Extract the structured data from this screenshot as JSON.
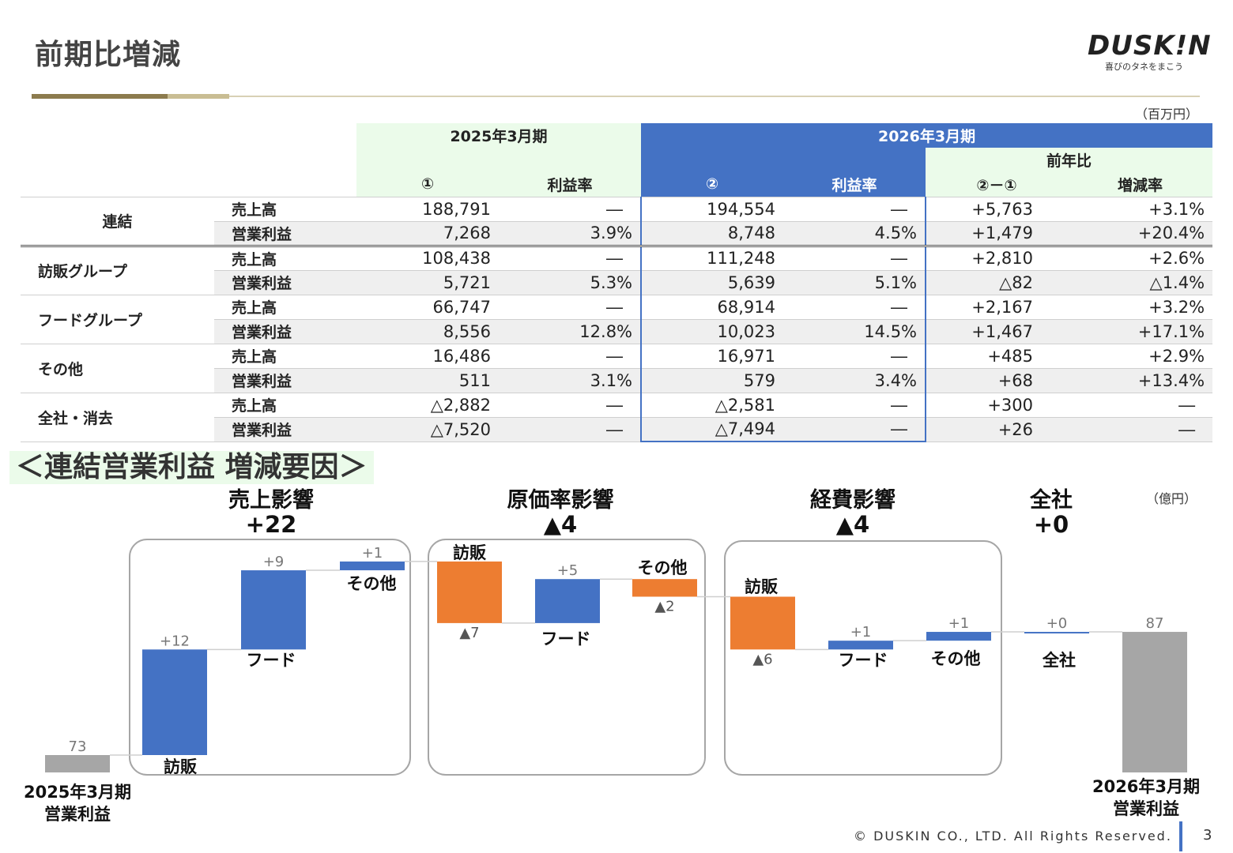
{
  "header": {
    "title": "前期比増減",
    "logo_text": "DUSK!N",
    "logo_tagline": "喜びのタネをまこう",
    "unit": "（百万円）"
  },
  "table": {
    "period_prev": "2025年3月期",
    "period_curr": "2026年3月期",
    "yoy_label": "前年比",
    "col_prev": "①",
    "col_margin": "利益率",
    "col_curr": "②",
    "col_diff": "②－①",
    "col_rate": "増減率",
    "rows": [
      {
        "segment": "連結",
        "item": "売上高",
        "prev": "188,791",
        "prev_margin": "―",
        "curr": "194,554",
        "curr_margin": "―",
        "diff": "+5,763",
        "rate": "+3.1%"
      },
      {
        "segment": "",
        "item": "営業利益",
        "prev": "7,268",
        "prev_margin": "3.9%",
        "curr": "8,748",
        "curr_margin": "4.5%",
        "diff": "+1,479",
        "rate": "+20.4%"
      },
      {
        "segment": "訪販グループ",
        "item": "売上高",
        "prev": "108,438",
        "prev_margin": "―",
        "curr": "111,248",
        "curr_margin": "―",
        "diff": "+2,810",
        "rate": "+2.6%"
      },
      {
        "segment": "",
        "item": "営業利益",
        "prev": "5,721",
        "prev_margin": "5.3%",
        "curr": "5,639",
        "curr_margin": "5.1%",
        "diff": "△82",
        "rate": "△1.4%"
      },
      {
        "segment": "フードグループ",
        "item": "売上高",
        "prev": "66,747",
        "prev_margin": "―",
        "curr": "68,914",
        "curr_margin": "―",
        "diff": "+2,167",
        "rate": "+3.2%"
      },
      {
        "segment": "",
        "item": "営業利益",
        "prev": "8,556",
        "prev_margin": "12.8%",
        "curr": "10,023",
        "curr_margin": "14.5%",
        "diff": "+1,467",
        "rate": "+17.1%"
      },
      {
        "segment": "その他",
        "item": "売上高",
        "prev": "16,486",
        "prev_margin": "―",
        "curr": "16,971",
        "curr_margin": "―",
        "diff": "+485",
        "rate": "+2.9%"
      },
      {
        "segment": "",
        "item": "営業利益",
        "prev": "511",
        "prev_margin": "3.1%",
        "curr": "579",
        "curr_margin": "3.4%",
        "diff": "+68",
        "rate": "+13.4%"
      },
      {
        "segment": "全社・消去",
        "item": "売上高",
        "prev": "△2,882",
        "prev_margin": "―",
        "curr": "△2,581",
        "curr_margin": "―",
        "diff": "+300",
        "rate": "―"
      },
      {
        "segment": "",
        "item": "営業利益",
        "prev": "△7,520",
        "prev_margin": "―",
        "curr": "△7,494",
        "curr_margin": "―",
        "diff": "+26",
        "rate": "―"
      }
    ]
  },
  "chart_section": {
    "heading": "＜連結営業利益  増減要因＞",
    "unit": "（億円）"
  },
  "chart_data": {
    "type": "bar",
    "unit": "億円",
    "groups": [
      {
        "title": "売上影響",
        "value_label": "+22"
      },
      {
        "title": "原価率影響",
        "value_label": "▲4"
      },
      {
        "title": "経費影響",
        "value_label": "▲4"
      },
      {
        "title": "全社",
        "value_label": "+0"
      }
    ],
    "bars": [
      {
        "category": "2025年3月期\n営業利益",
        "kind": "total",
        "start": 0,
        "end": 73,
        "label": "73",
        "color": "#a6a6a6"
      },
      {
        "category": "訪販",
        "kind": "up",
        "start": 73,
        "end": 85,
        "label": "+12",
        "color": "#4472c4"
      },
      {
        "category": "フード",
        "kind": "up",
        "start": 85,
        "end": 94,
        "label": "+9",
        "color": "#4472c4"
      },
      {
        "category": "その他",
        "kind": "up",
        "start": 94,
        "end": 95,
        "label": "+1",
        "color": "#4472c4"
      },
      {
        "category": "訪販",
        "kind": "down",
        "start": 95,
        "end": 88,
        "label": "▲7",
        "color": "#ed7d31"
      },
      {
        "category": "フード",
        "kind": "up",
        "start": 88,
        "end": 93,
        "label": "+5",
        "color": "#4472c4"
      },
      {
        "category": "その他",
        "kind": "down",
        "start": 93,
        "end": 91,
        "label": "▲2",
        "color": "#ed7d31"
      },
      {
        "category": "訪販",
        "kind": "down",
        "start": 91,
        "end": 85,
        "label": "▲6",
        "color": "#ed7d31"
      },
      {
        "category": "フード",
        "kind": "up",
        "start": 85,
        "end": 86,
        "label": "+1",
        "color": "#4472c4"
      },
      {
        "category": "その他",
        "kind": "up",
        "start": 86,
        "end": 87,
        "label": "+1",
        "color": "#4472c4"
      },
      {
        "category": "全社",
        "kind": "up",
        "start": 87,
        "end": 87,
        "label": "+0",
        "color": "#4472c4"
      },
      {
        "category": "2026年3月期\n営業利益",
        "kind": "total",
        "start": 0,
        "end": 87,
        "label": "87",
        "color": "#a6a6a6"
      }
    ]
  },
  "footer": {
    "copyright": "© DUSKIN CO., LTD. All Rights Reserved.",
    "page": "3"
  }
}
